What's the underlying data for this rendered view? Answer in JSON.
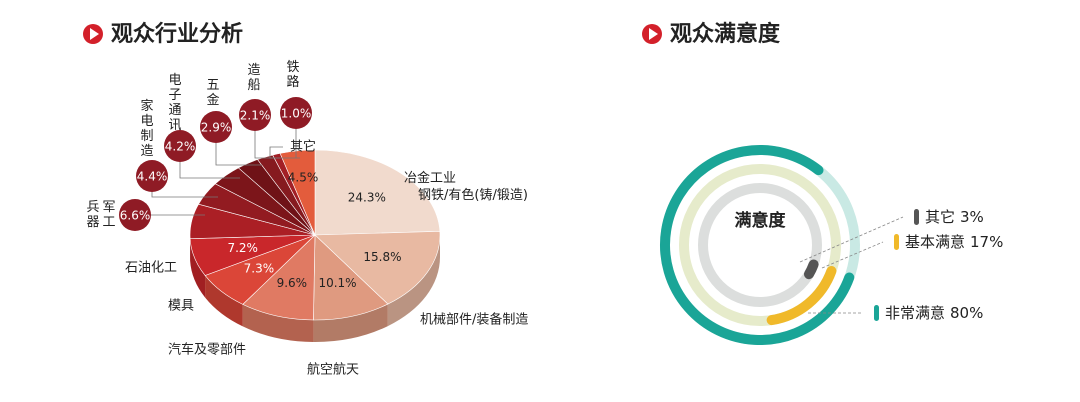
{
  "chart_data": [
    {
      "type": "pie",
      "title": "观众行业分析",
      "categories": [
        "冶金工业\n钢铁/有色(铸/锻造)",
        "机械部件/装备制造",
        "航空航天",
        "汽车及零部件",
        "模具",
        "石油化工",
        "兵器军工",
        "家电制造",
        "电子通讯",
        "五金",
        "造船",
        "铁路",
        "其它"
      ],
      "values": [
        24.3,
        15.8,
        10.1,
        9.6,
        7.3,
        7.2,
        6.6,
        4.4,
        4.2,
        2.9,
        2.1,
        1.0,
        4.5
      ],
      "value_labels": [
        "24.3%",
        "15.8%",
        "10.1%",
        "9.6%",
        "7.3%",
        "7.2%",
        "6.6%",
        "4.4%",
        "4.2%",
        "2.9%",
        "2.1%",
        "1.0%",
        "4.5%"
      ],
      "colors": [
        "#f1dacd",
        "#e8b9a2",
        "#df9a80",
        "#e07a63",
        "#db4638",
        "#c9272b",
        "#ab1f25",
        "#921b21",
        "#7c151a",
        "#6f1217",
        "#861a1f",
        "#a21f26",
        "#e35c3c"
      ]
    },
    {
      "type": "ring",
      "title": "观众满意度",
      "center_label": "满意度",
      "categories": [
        "非常满意",
        "基本满意",
        "其它"
      ],
      "values": [
        80,
        17,
        3
      ],
      "value_labels": [
        "80%",
        "17%",
        "3%"
      ],
      "colors": [
        "#1aa597",
        "#f0b92a",
        "#555555"
      ],
      "track_colors": [
        "#c9e9e4",
        "#e6ebcb",
        "#dcdedd"
      ]
    }
  ]
}
